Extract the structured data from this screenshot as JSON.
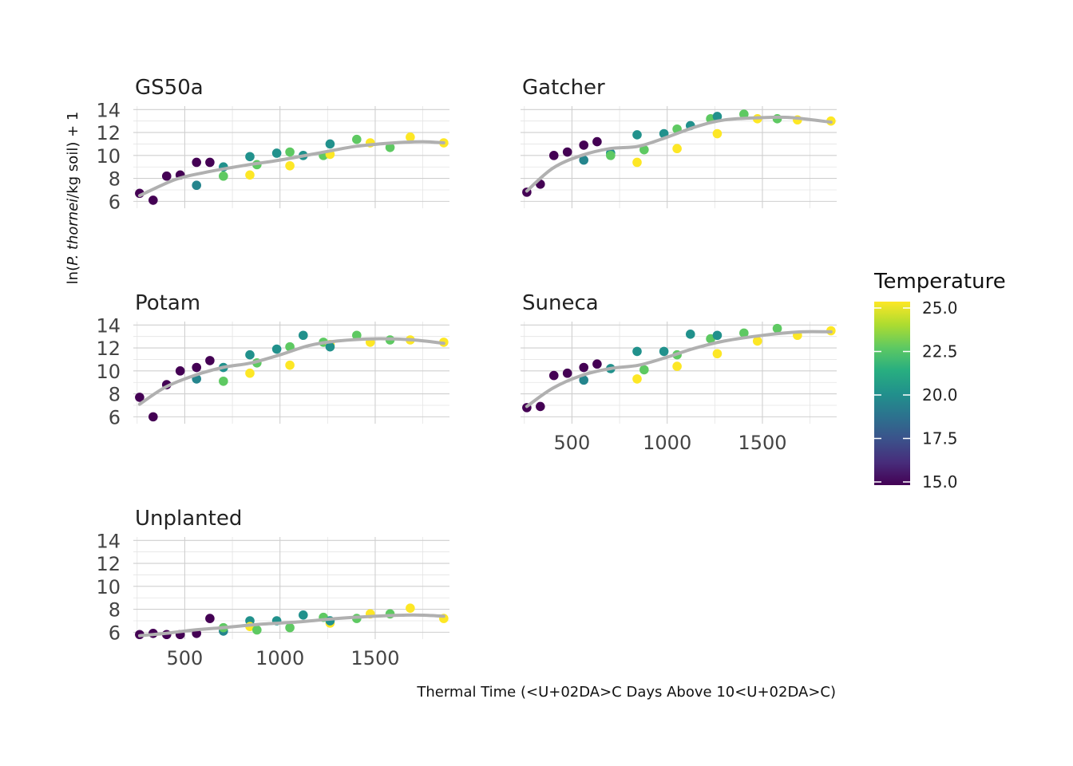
{
  "chart_data": {
    "type": "scatter",
    "x_label": "Thermal Time (<U+02DA>C Days Above 10<U+02DA>C)",
    "y_label": {
      "prefix": "ln(",
      "italic": "P. thornei",
      "suffix": "/kg soil) + 1"
    },
    "x_range": [
      230,
      1890
    ],
    "y_range": [
      5.4,
      14.3
    ],
    "x_ticks": [
      500,
      1000,
      1500
    ],
    "x_tick_labels": [
      "500",
      "1000",
      "1500"
    ],
    "y_ticks": [
      6,
      8,
      10,
      12,
      14
    ],
    "y_tick_labels": [
      "6",
      "8",
      "10",
      "12",
      "14"
    ],
    "trend_color": "#b0b0b0",
    "legend": {
      "title": "Temperature",
      "placement": "right",
      "min": 15.0,
      "max": 25.0,
      "ticks": [
        15.0,
        17.5,
        20.0,
        22.5,
        25.0
      ],
      "tick_labels": [
        "15.0",
        "17.5",
        "20.0",
        "22.5",
        "25.0"
      ]
    },
    "panels": [
      {
        "name": "GS50a",
        "points": [
          {
            "x": 263,
            "y": 6.7,
            "t": 15.0
          },
          {
            "x": 334,
            "y": 6.1,
            "t": 15.0
          },
          {
            "x": 405,
            "y": 8.2,
            "t": 15.0
          },
          {
            "x": 476,
            "y": 8.3,
            "t": 15.0
          },
          {
            "x": 562,
            "y": 9.4,
            "t": 15.0
          },
          {
            "x": 632,
            "y": 9.4,
            "t": 15.0
          },
          {
            "x": 562,
            "y": 7.4,
            "t": 19.5
          },
          {
            "x": 703,
            "y": 9.0,
            "t": 20.0
          },
          {
            "x": 703,
            "y": 8.2,
            "t": 22.5
          },
          {
            "x": 842,
            "y": 9.9,
            "t": 20.0
          },
          {
            "x": 842,
            "y": 8.3,
            "t": 25.0
          },
          {
            "x": 879,
            "y": 9.2,
            "t": 22.5
          },
          {
            "x": 983,
            "y": 10.2,
            "t": 20.0
          },
          {
            "x": 1052,
            "y": 10.3,
            "t": 22.5
          },
          {
            "x": 1052,
            "y": 9.1,
            "t": 25.0
          },
          {
            "x": 1122,
            "y": 10.0,
            "t": 20.0
          },
          {
            "x": 1228,
            "y": 10.0,
            "t": 22.5
          },
          {
            "x": 1263,
            "y": 10.1,
            "t": 25.0
          },
          {
            "x": 1263,
            "y": 11.0,
            "t": 20.0
          },
          {
            "x": 1403,
            "y": 11.4,
            "t": 22.5
          },
          {
            "x": 1474,
            "y": 11.1,
            "t": 25.0
          },
          {
            "x": 1578,
            "y": 10.7,
            "t": 22.5
          },
          {
            "x": 1684,
            "y": 11.6,
            "t": 25.0
          },
          {
            "x": 1860,
            "y": 11.1,
            "t": 25.0
          }
        ],
        "trend": [
          {
            "x": 263,
            "y": 6.5
          },
          {
            "x": 450,
            "y": 7.9
          },
          {
            "x": 600,
            "y": 8.5
          },
          {
            "x": 800,
            "y": 9.1
          },
          {
            "x": 1000,
            "y": 9.6
          },
          {
            "x": 1200,
            "y": 10.2
          },
          {
            "x": 1400,
            "y": 10.8
          },
          {
            "x": 1600,
            "y": 11.1
          },
          {
            "x": 1750,
            "y": 11.2
          },
          {
            "x": 1860,
            "y": 11.1
          }
        ]
      },
      {
        "name": "Gatcher",
        "points": [
          {
            "x": 263,
            "y": 6.8,
            "t": 15.0
          },
          {
            "x": 334,
            "y": 7.5,
            "t": 15.0
          },
          {
            "x": 405,
            "y": 10.0,
            "t": 15.0
          },
          {
            "x": 476,
            "y": 10.3,
            "t": 15.0
          },
          {
            "x": 562,
            "y": 10.9,
            "t": 15.0
          },
          {
            "x": 632,
            "y": 11.2,
            "t": 15.0
          },
          {
            "x": 562,
            "y": 9.6,
            "t": 19.5
          },
          {
            "x": 703,
            "y": 10.2,
            "t": 20.0
          },
          {
            "x": 703,
            "y": 10.0,
            "t": 22.5
          },
          {
            "x": 842,
            "y": 11.8,
            "t": 20.0
          },
          {
            "x": 842,
            "y": 9.4,
            "t": 25.0
          },
          {
            "x": 879,
            "y": 10.5,
            "t": 22.5
          },
          {
            "x": 983,
            "y": 11.9,
            "t": 20.0
          },
          {
            "x": 1052,
            "y": 12.3,
            "t": 22.5
          },
          {
            "x": 1052,
            "y": 10.6,
            "t": 25.0
          },
          {
            "x": 1122,
            "y": 12.6,
            "t": 20.0
          },
          {
            "x": 1228,
            "y": 13.2,
            "t": 22.5
          },
          {
            "x": 1263,
            "y": 11.9,
            "t": 25.0
          },
          {
            "x": 1263,
            "y": 13.4,
            "t": 20.0
          },
          {
            "x": 1403,
            "y": 13.6,
            "t": 22.5
          },
          {
            "x": 1474,
            "y": 13.2,
            "t": 25.0
          },
          {
            "x": 1578,
            "y": 13.2,
            "t": 22.5
          },
          {
            "x": 1684,
            "y": 13.1,
            "t": 25.0
          },
          {
            "x": 1860,
            "y": 13.0,
            "t": 25.0
          }
        ],
        "trend": [
          {
            "x": 263,
            "y": 6.9
          },
          {
            "x": 400,
            "y": 8.9
          },
          {
            "x": 550,
            "y": 10.0
          },
          {
            "x": 700,
            "y": 10.6
          },
          {
            "x": 850,
            "y": 10.8
          },
          {
            "x": 1000,
            "y": 11.6
          },
          {
            "x": 1150,
            "y": 12.5
          },
          {
            "x": 1300,
            "y": 13.1
          },
          {
            "x": 1500,
            "y": 13.3
          },
          {
            "x": 1650,
            "y": 13.3
          },
          {
            "x": 1860,
            "y": 12.9
          }
        ]
      },
      {
        "name": "Potam",
        "points": [
          {
            "x": 263,
            "y": 7.7,
            "t": 15.0
          },
          {
            "x": 334,
            "y": 6.0,
            "t": 15.0
          },
          {
            "x": 405,
            "y": 8.8,
            "t": 15.0
          },
          {
            "x": 476,
            "y": 10.0,
            "t": 15.0
          },
          {
            "x": 562,
            "y": 10.3,
            "t": 15.0
          },
          {
            "x": 632,
            "y": 10.9,
            "t": 15.0
          },
          {
            "x": 562,
            "y": 9.3,
            "t": 19.5
          },
          {
            "x": 703,
            "y": 10.3,
            "t": 20.0
          },
          {
            "x": 703,
            "y": 9.1,
            "t": 22.5
          },
          {
            "x": 842,
            "y": 11.4,
            "t": 20.0
          },
          {
            "x": 842,
            "y": 9.8,
            "t": 25.0
          },
          {
            "x": 879,
            "y": 10.7,
            "t": 22.5
          },
          {
            "x": 983,
            "y": 11.9,
            "t": 20.0
          },
          {
            "x": 1052,
            "y": 12.1,
            "t": 22.5
          },
          {
            "x": 1052,
            "y": 10.5,
            "t": 25.0
          },
          {
            "x": 1122,
            "y": 13.1,
            "t": 20.0
          },
          {
            "x": 1228,
            "y": 12.5,
            "t": 22.5
          },
          {
            "x": 1263,
            "y": 12.3,
            "t": 25.0
          },
          {
            "x": 1263,
            "y": 12.1,
            "t": 20.0
          },
          {
            "x": 1403,
            "y": 13.1,
            "t": 22.5
          },
          {
            "x": 1474,
            "y": 12.5,
            "t": 25.0
          },
          {
            "x": 1578,
            "y": 12.7,
            "t": 22.5
          },
          {
            "x": 1684,
            "y": 12.7,
            "t": 25.0
          },
          {
            "x": 1860,
            "y": 12.5,
            "t": 25.0
          }
        ],
        "trend": [
          {
            "x": 263,
            "y": 7.1
          },
          {
            "x": 400,
            "y": 8.6
          },
          {
            "x": 550,
            "y": 9.6
          },
          {
            "x": 700,
            "y": 10.3
          },
          {
            "x": 850,
            "y": 10.7
          },
          {
            "x": 1000,
            "y": 11.4
          },
          {
            "x": 1150,
            "y": 12.2
          },
          {
            "x": 1300,
            "y": 12.6
          },
          {
            "x": 1500,
            "y": 12.8
          },
          {
            "x": 1700,
            "y": 12.7
          },
          {
            "x": 1860,
            "y": 12.4
          }
        ]
      },
      {
        "name": "Suneca",
        "points": [
          {
            "x": 263,
            "y": 6.8,
            "t": 15.0
          },
          {
            "x": 334,
            "y": 6.9,
            "t": 15.0
          },
          {
            "x": 405,
            "y": 9.6,
            "t": 15.0
          },
          {
            "x": 476,
            "y": 9.8,
            "t": 15.0
          },
          {
            "x": 562,
            "y": 10.3,
            "t": 15.0
          },
          {
            "x": 632,
            "y": 10.6,
            "t": 15.0
          },
          {
            "x": 562,
            "y": 9.2,
            "t": 19.5
          },
          {
            "x": 703,
            "y": 10.2,
            "t": 20.0
          },
          {
            "x": 842,
            "y": 11.7,
            "t": 20.0
          },
          {
            "x": 842,
            "y": 9.3,
            "t": 25.0
          },
          {
            "x": 879,
            "y": 10.1,
            "t": 22.5
          },
          {
            "x": 983,
            "y": 11.7,
            "t": 20.0
          },
          {
            "x": 1052,
            "y": 11.4,
            "t": 22.5
          },
          {
            "x": 1052,
            "y": 10.4,
            "t": 25.0
          },
          {
            "x": 1122,
            "y": 13.2,
            "t": 20.0
          },
          {
            "x": 1228,
            "y": 12.8,
            "t": 22.5
          },
          {
            "x": 1263,
            "y": 11.5,
            "t": 25.0
          },
          {
            "x": 1263,
            "y": 13.1,
            "t": 20.0
          },
          {
            "x": 1403,
            "y": 13.3,
            "t": 22.5
          },
          {
            "x": 1474,
            "y": 12.6,
            "t": 25.0
          },
          {
            "x": 1578,
            "y": 13.7,
            "t": 22.5
          },
          {
            "x": 1684,
            "y": 13.1,
            "t": 25.0
          },
          {
            "x": 1860,
            "y": 13.5,
            "t": 25.0
          }
        ],
        "trend": [
          {
            "x": 263,
            "y": 6.9
          },
          {
            "x": 400,
            "y": 8.5
          },
          {
            "x": 550,
            "y": 9.6
          },
          {
            "x": 700,
            "y": 10.2
          },
          {
            "x": 850,
            "y": 10.5
          },
          {
            "x": 1000,
            "y": 11.2
          },
          {
            "x": 1150,
            "y": 12.0
          },
          {
            "x": 1300,
            "y": 12.6
          },
          {
            "x": 1500,
            "y": 13.1
          },
          {
            "x": 1700,
            "y": 13.4
          },
          {
            "x": 1860,
            "y": 13.4
          }
        ]
      },
      {
        "name": "Unplanted",
        "points": [
          {
            "x": 263,
            "y": 5.8,
            "t": 15.0
          },
          {
            "x": 334,
            "y": 5.9,
            "t": 15.0
          },
          {
            "x": 405,
            "y": 5.8,
            "t": 15.0
          },
          {
            "x": 476,
            "y": 5.8,
            "t": 15.0
          },
          {
            "x": 562,
            "y": 5.9,
            "t": 15.0
          },
          {
            "x": 632,
            "y": 7.2,
            "t": 15.0
          },
          {
            "x": 703,
            "y": 6.1,
            "t": 19.5
          },
          {
            "x": 703,
            "y": 6.4,
            "t": 22.5
          },
          {
            "x": 842,
            "y": 7.0,
            "t": 20.0
          },
          {
            "x": 842,
            "y": 6.5,
            "t": 25.0
          },
          {
            "x": 879,
            "y": 6.2,
            "t": 22.5
          },
          {
            "x": 983,
            "y": 7.0,
            "t": 20.0
          },
          {
            "x": 1052,
            "y": 6.4,
            "t": 22.5
          },
          {
            "x": 1122,
            "y": 7.5,
            "t": 20.0
          },
          {
            "x": 1228,
            "y": 7.3,
            "t": 22.5
          },
          {
            "x": 1263,
            "y": 6.8,
            "t": 25.0
          },
          {
            "x": 1263,
            "y": 7.0,
            "t": 20.0
          },
          {
            "x": 1403,
            "y": 7.2,
            "t": 22.5
          },
          {
            "x": 1474,
            "y": 7.6,
            "t": 25.0
          },
          {
            "x": 1578,
            "y": 7.6,
            "t": 22.5
          },
          {
            "x": 1684,
            "y": 8.1,
            "t": 25.0
          },
          {
            "x": 1860,
            "y": 7.2,
            "t": 25.0
          }
        ],
        "trend": [
          {
            "x": 263,
            "y": 5.7
          },
          {
            "x": 400,
            "y": 5.9
          },
          {
            "x": 550,
            "y": 6.2
          },
          {
            "x": 700,
            "y": 6.4
          },
          {
            "x": 900,
            "y": 6.7
          },
          {
            "x": 1100,
            "y": 6.9
          },
          {
            "x": 1300,
            "y": 7.2
          },
          {
            "x": 1500,
            "y": 7.4
          },
          {
            "x": 1700,
            "y": 7.5
          },
          {
            "x": 1860,
            "y": 7.4
          }
        ]
      }
    ]
  }
}
